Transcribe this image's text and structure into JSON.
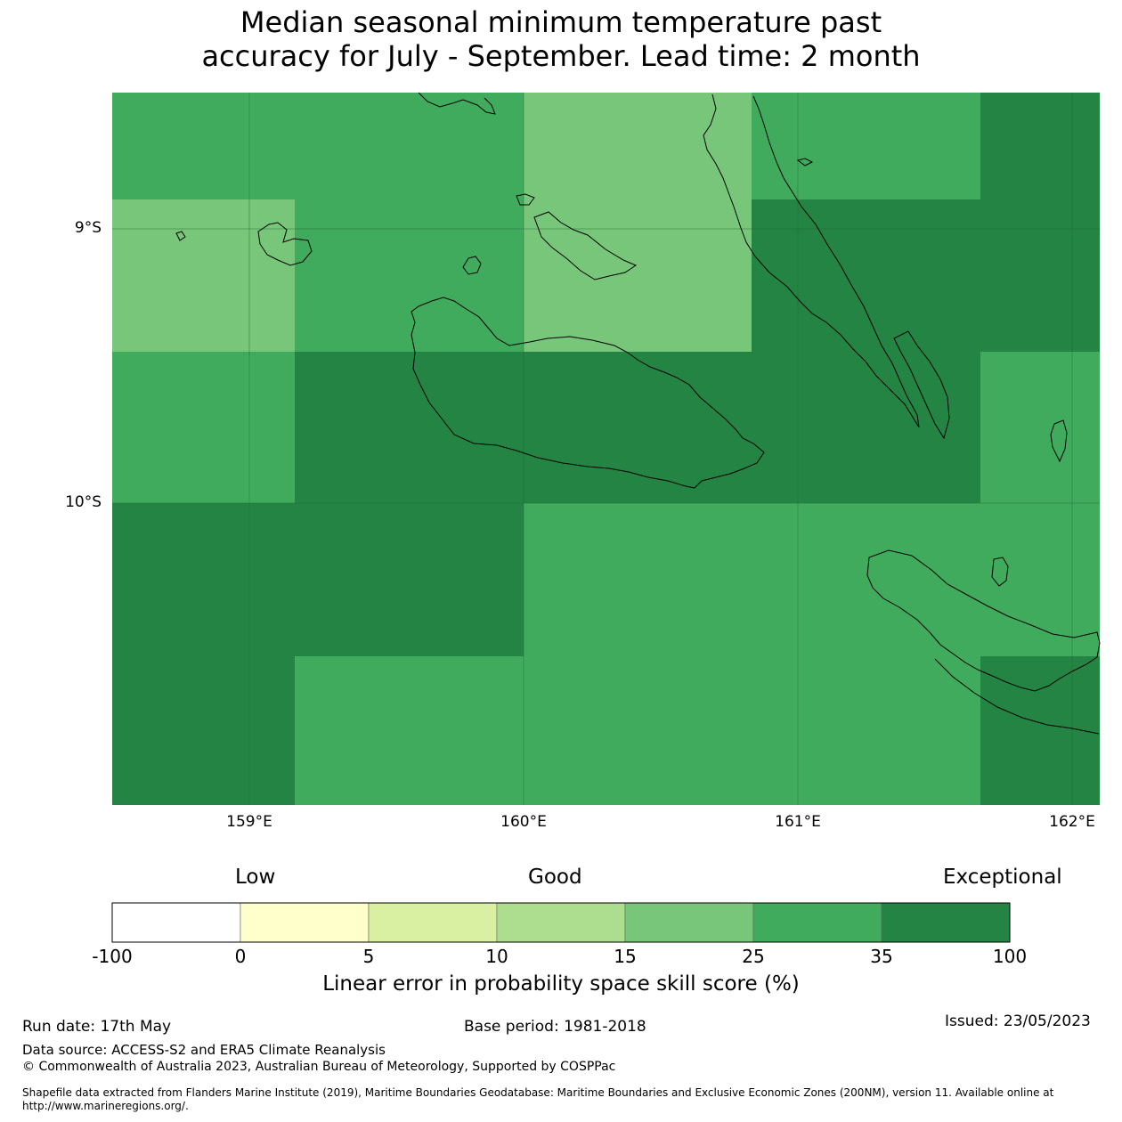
{
  "title": {
    "line1": "Median seasonal minimum temperature past",
    "line2": "accuracy for July - September. Lead time: 2 month"
  },
  "map": {
    "lat_labels": [
      "9°S",
      "10°S"
    ],
    "lon_labels": [
      "159°E",
      "160°E",
      "161°E",
      "162°E"
    ],
    "gridlines": true,
    "colors": {
      "15-25": "#78c679",
      "25-35": "#41ab5d",
      "35-100": "#238443"
    }
  },
  "colorbar": {
    "heading_low": "Low",
    "heading_good": "Good",
    "heading_exceptional": "Exceptional",
    "ticks": [
      "-100",
      "0",
      "5",
      "10",
      "15",
      "25",
      "35",
      "100"
    ],
    "colors": [
      "#ffffff",
      "#ffffcc",
      "#d9f0a3",
      "#addd8e",
      "#78c679",
      "#41ab5d",
      "#238443"
    ],
    "label": "Linear error in probability space skill score (%)"
  },
  "footer": {
    "run_date": "Run date: 17th May",
    "base_period": "Base period: 1981-2018",
    "issued": "Issued: 23/05/2023",
    "data_source": "Data source: ACCESS-S2 and ERA5 Climate Reanalysis",
    "copyright": "© Commonwealth of Australia 2023, Australian Bureau of Meteorology, Supported by COSPPac",
    "shapefile": "Shapefile data extracted from Flanders Marine Institute (2019), Maritime Boundaries Geodatabase: Maritime Boundaries and Exclusive Economic Zones (200NM), version 11. Available online at http://www.marineregions.org/."
  }
}
